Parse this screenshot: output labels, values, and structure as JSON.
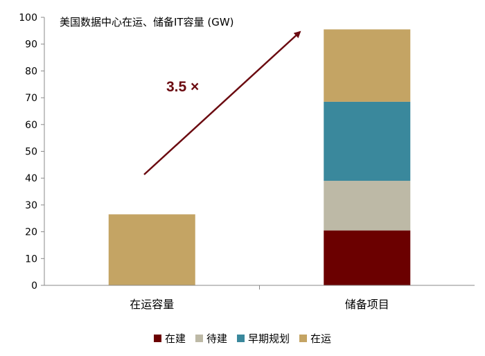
{
  "chart_data": {
    "type": "bar",
    "stacked": true,
    "title": "美国数据中心在运、储备IT容量 (GW)",
    "categories": [
      "在运容量",
      "储备项目"
    ],
    "series": [
      {
        "name": "在建",
        "color": "#6b0000",
        "values": [
          0,
          20.5
        ]
      },
      {
        "name": "待建",
        "color": "#bdb9a6",
        "values": [
          0,
          18.5
        ]
      },
      {
        "name": "早期规划",
        "color": "#3a889c",
        "values": [
          0,
          29.5
        ]
      },
      {
        "name": "在运",
        "color": "#c4a464",
        "values": [
          26.5,
          27
        ]
      }
    ],
    "ylim": [
      0,
      100
    ],
    "yticks": [
      0,
      10,
      20,
      30,
      40,
      50,
      60,
      70,
      80,
      90,
      100
    ],
    "annotation": {
      "text": "3.5 ×",
      "color": "#6b0a10"
    },
    "grid": false,
    "legend_position": "bottom"
  }
}
